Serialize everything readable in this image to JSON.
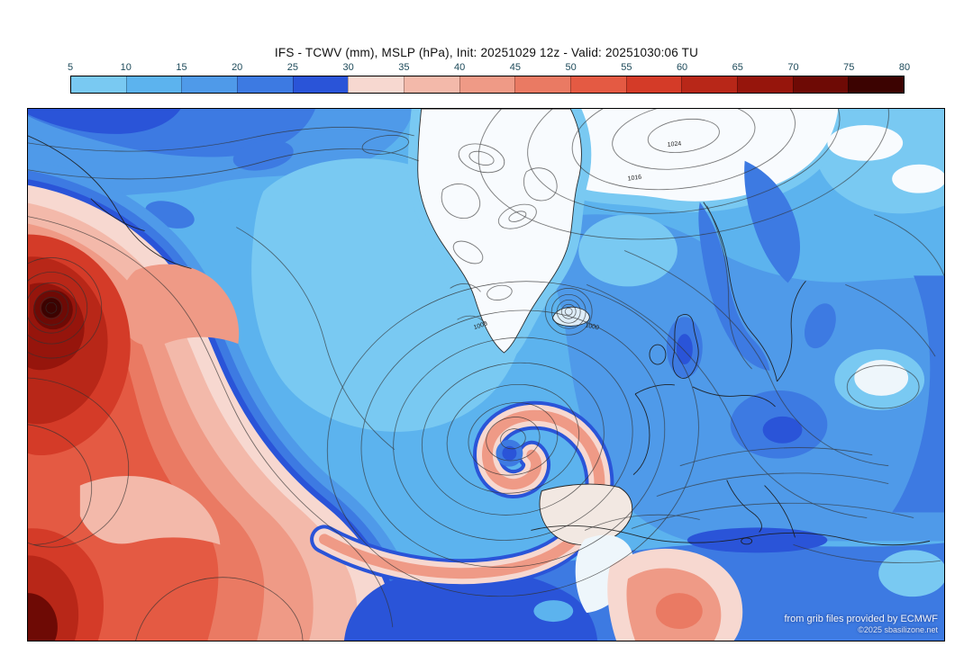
{
  "header": {
    "title": "IFS - TCWV (mm), MSLP (hPa), Init: 20251029 12z - Valid: 20251030:06 TU"
  },
  "colorbar": {
    "ticks": [
      "5",
      "10",
      "15",
      "20",
      "25",
      "30",
      "35",
      "40",
      "45",
      "50",
      "55",
      "60",
      "65",
      "70",
      "75",
      "80"
    ],
    "segments": [
      {
        "from": 5,
        "to": 10,
        "color": "#79c9f2"
      },
      {
        "from": 10,
        "to": 15,
        "color": "#5cb3ee"
      },
      {
        "from": 15,
        "to": 20,
        "color": "#4f9ae9"
      },
      {
        "from": 20,
        "to": 25,
        "color": "#3d7ae2"
      },
      {
        "from": 25,
        "to": 30,
        "color": "#2a54d8"
      },
      {
        "from": 30,
        "to": 35,
        "color": "#f7d8d0"
      },
      {
        "from": 35,
        "to": 40,
        "color": "#f3b9aa"
      },
      {
        "from": 40,
        "to": 45,
        "color": "#ef9a86"
      },
      {
        "from": 45,
        "to": 50,
        "color": "#ea7a63"
      },
      {
        "from": 50,
        "to": 55,
        "color": "#e45a43"
      },
      {
        "from": 55,
        "to": 60,
        "color": "#d43b28"
      },
      {
        "from": 60,
        "to": 65,
        "color": "#b82718"
      },
      {
        "from": 65,
        "to": 70,
        "color": "#96150c"
      },
      {
        "from": 70,
        "to": 75,
        "color": "#6e0a05"
      },
      {
        "from": 75,
        "to": 80,
        "color": "#3c0301"
      }
    ]
  },
  "map": {
    "isobar_labels": [
      "1000",
      "1000",
      "1016",
      "1024"
    ],
    "attribution_line1": "from grib files provided by ECMWF",
    "attribution_line2": "©2025 sbasilizone.net"
  },
  "palette": {
    "blue1": "#79c9f2",
    "blue2": "#5cb3ee",
    "blue3": "#4f9ae9",
    "blue4": "#3d7ae2",
    "blue5": "#2a54d8",
    "pink1": "#f7d8d0",
    "pink2": "#f3b9aa",
    "salmon": "#ef9a86",
    "red1": "#ea7a63",
    "red2": "#e45a43",
    "red3": "#d43b28",
    "red4": "#b82718",
    "red5": "#96150c",
    "maroon": "#6e0a05",
    "dark": "#3c0301",
    "white_region": "#f8fbfe",
    "white_soft": "#eef6fb",
    "land_pale": "#f2e8e2",
    "contour": "#333333",
    "coast": "#1a1a1a"
  }
}
